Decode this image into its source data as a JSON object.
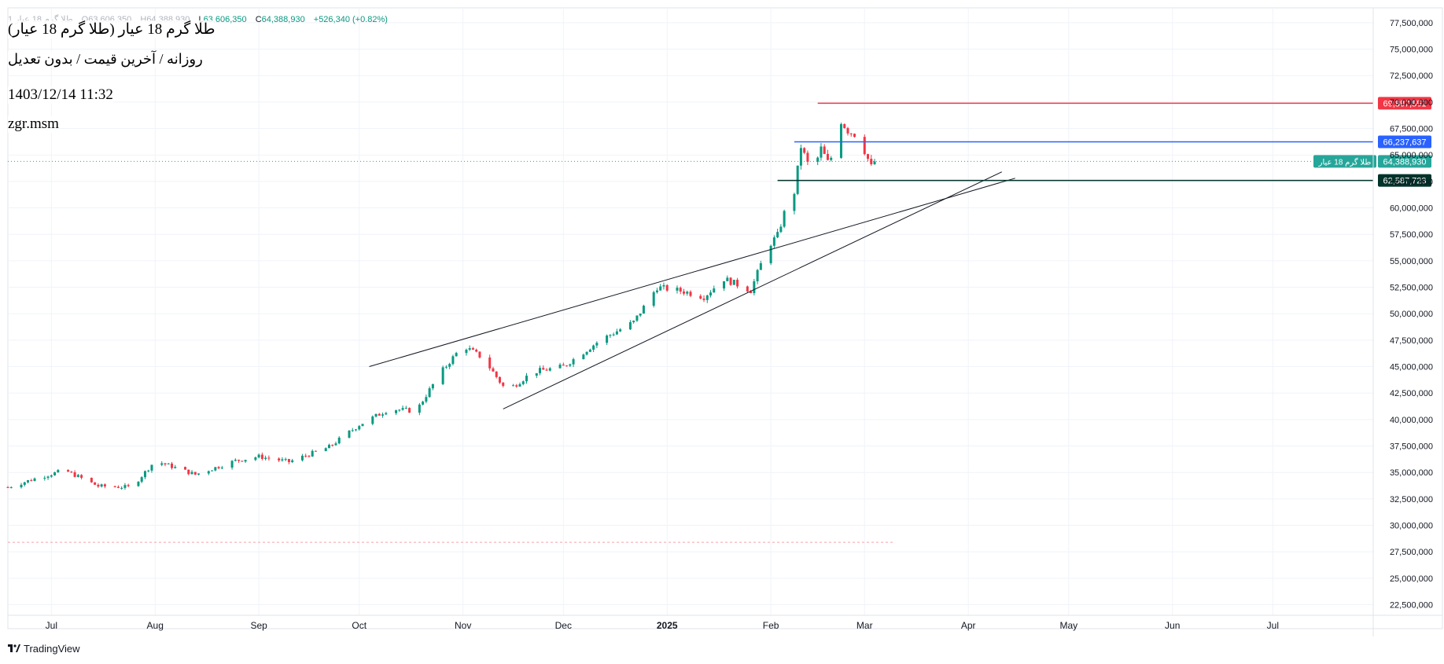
{
  "header": {
    "ohlc": {
      "symbol": "طلا گرم 18 عیار 1",
      "o_label": "O",
      "o_value": "63,606,350",
      "h_label": "H",
      "h_value": "64,388,930",
      "l_label": "L",
      "l_value": "63,606,350",
      "c_label": "C",
      "c_value": "64,388,930",
      "change": "+526,340 (+0.82%)"
    }
  },
  "overlay": {
    "title": "طلا گرم 18 عیار (طلا گرم 18 عیار)",
    "subtitle": "روزانه / آخرین قیمت / بدون تعدیل",
    "datetime": "1403/12/14 11:32",
    "user": "zgr.msm"
  },
  "footer": {
    "brand": "TradingView",
    "logo_icon": "tradingview-logo-icon"
  },
  "colors": {
    "up": "#089981",
    "down": "#f23645",
    "resistance": "#f23645",
    "mid": "#2962ff",
    "support": "#00332a",
    "last_price": "#26a69a",
    "trendline": "#131722",
    "grid": "#f0f3fa",
    "axis_text": "#131722"
  },
  "chart_data": {
    "type": "candlestick",
    "title": "طلا گرم 18 عیار (طلا گرم 18 عیار)",
    "interval": "روزانه",
    "x_labels": [
      "Jul",
      "Aug",
      "Sep",
      "Oct",
      "Nov",
      "Dec",
      "2025",
      "Feb",
      "Mar",
      "Apr",
      "May",
      "Jun",
      "Jul"
    ],
    "x_label_dates": [
      "2024-07-01",
      "2024-08-01",
      "2024-09-01",
      "2024-10-01",
      "2024-11-01",
      "2024-12-01",
      "2025-01-01",
      "2025-02-01",
      "2025-03-01",
      "2025-04-01",
      "2025-05-01",
      "2025-06-01",
      "2025-07-01"
    ],
    "x_range": [
      "2024-06-18",
      "2025-07-31"
    ],
    "y_ticks": [
      22500000,
      25000000,
      27500000,
      30000000,
      32500000,
      35000000,
      37500000,
      40000000,
      42500000,
      45000000,
      47500000,
      50000000,
      52500000,
      55000000,
      57500000,
      60000000,
      62500000,
      65000000,
      67500000,
      70000000,
      72500000,
      75000000,
      77500000
    ],
    "y_tick_labels": [
      "22,500,000",
      "25,000,000",
      "27,500,000",
      "30,000,000",
      "32,500,000",
      "35,000,000",
      "37,500,000",
      "40,000,000",
      "42,500,000",
      "45,000,000",
      "47,500,000",
      "50,000,000",
      "52,500,000",
      "55,000,000",
      "57,500,000",
      "60,000,000",
      "62,500,000",
      "65,000,000",
      "67,500,000",
      "70,000,000",
      "72,500,000",
      "75,000,000",
      "77,500,000"
    ],
    "y_range": [
      21500000,
      78900000
    ],
    "grid": true,
    "key_points": [
      {
        "date": "2024-06-18",
        "close": 33600000
      },
      {
        "date": "2024-06-27",
        "close": 34500000
      },
      {
        "date": "2024-07-05",
        "close": 35200000
      },
      {
        "date": "2024-07-15",
        "close": 33700000
      },
      {
        "date": "2024-07-25",
        "close": 33600000
      },
      {
        "date": "2024-08-01",
        "close": 36100000
      },
      {
        "date": "2024-08-13",
        "close": 34800000
      },
      {
        "date": "2024-08-25",
        "close": 36100000
      },
      {
        "date": "2024-09-01",
        "close": 36500000
      },
      {
        "date": "2024-09-10",
        "close": 36000000
      },
      {
        "date": "2024-09-22",
        "close": 37400000
      },
      {
        "date": "2024-10-01",
        "close": 39500000
      },
      {
        "date": "2024-10-10",
        "close": 41000000
      },
      {
        "date": "2024-10-18",
        "close": 40800000
      },
      {
        "date": "2024-10-25",
        "close": 44300000
      },
      {
        "date": "2024-11-01",
        "close": 47000000
      },
      {
        "date": "2024-11-07",
        "close": 45800000
      },
      {
        "date": "2024-11-14",
        "close": 42700000
      },
      {
        "date": "2024-11-22",
        "close": 44500000
      },
      {
        "date": "2024-12-01",
        "close": 45000000
      },
      {
        "date": "2024-12-12",
        "close": 47500000
      },
      {
        "date": "2024-12-22",
        "close": 49200000
      },
      {
        "date": "2024-12-29",
        "close": 52500000
      },
      {
        "date": "2025-01-06",
        "close": 52100000
      },
      {
        "date": "2025-01-12",
        "close": 51600000
      },
      {
        "date": "2025-01-18",
        "close": 53300000
      },
      {
        "date": "2025-01-26",
        "close": 52200000
      },
      {
        "date": "2025-01-31",
        "close": 56300000
      },
      {
        "date": "2025-02-03",
        "close": 57400000
      },
      {
        "date": "2025-02-05",
        "close": 59500000
      },
      {
        "date": "2025-02-08",
        "close": 61500000
      },
      {
        "date": "2025-02-10",
        "close": 65800000
      },
      {
        "date": "2025-02-12",
        "close": 64200000
      },
      {
        "date": "2025-02-14",
        "close": 63800000
      },
      {
        "date": "2025-02-16",
        "close": 65600000
      },
      {
        "date": "2025-02-18",
        "close": 64300000
      },
      {
        "date": "2025-02-20",
        "close": 65200000
      },
      {
        "date": "2025-02-22",
        "close": 68200000
      },
      {
        "date": "2025-02-24",
        "close": 67300000
      },
      {
        "date": "2025-02-27",
        "close": 66800000
      },
      {
        "date": "2025-03-01",
        "close": 65400000
      },
      {
        "date": "2025-03-03",
        "close": 63860000
      },
      {
        "date": "2025-03-04",
        "close": 64388930
      }
    ],
    "horizontal_levels": [
      {
        "value": 69887551,
        "label": "69,887,551",
        "start_date": "2025-02-15",
        "color": "#f23645"
      },
      {
        "value": 66237637,
        "label": "66,237,637",
        "start_date": "2025-02-08",
        "color": "#2962ff"
      },
      {
        "value": 62587723,
        "label": "62,587,723",
        "start_date": "2025-02-03",
        "color": "#00332a"
      }
    ],
    "last_price": {
      "value": 64388930,
      "label": "64,388,930",
      "symbol_tag": "طلا گرم 18 عیار"
    },
    "lower_dotted_level": {
      "value": 28400000,
      "end_date": "2025-03-10"
    },
    "trendlines": [
      {
        "x1": "2024-10-04",
        "y1": 45000000,
        "x2": "2025-04-15",
        "y2": 62800000
      },
      {
        "x1": "2024-11-13",
        "y1": 41000000,
        "x2": "2025-04-11",
        "y2": 63400000
      }
    ]
  }
}
